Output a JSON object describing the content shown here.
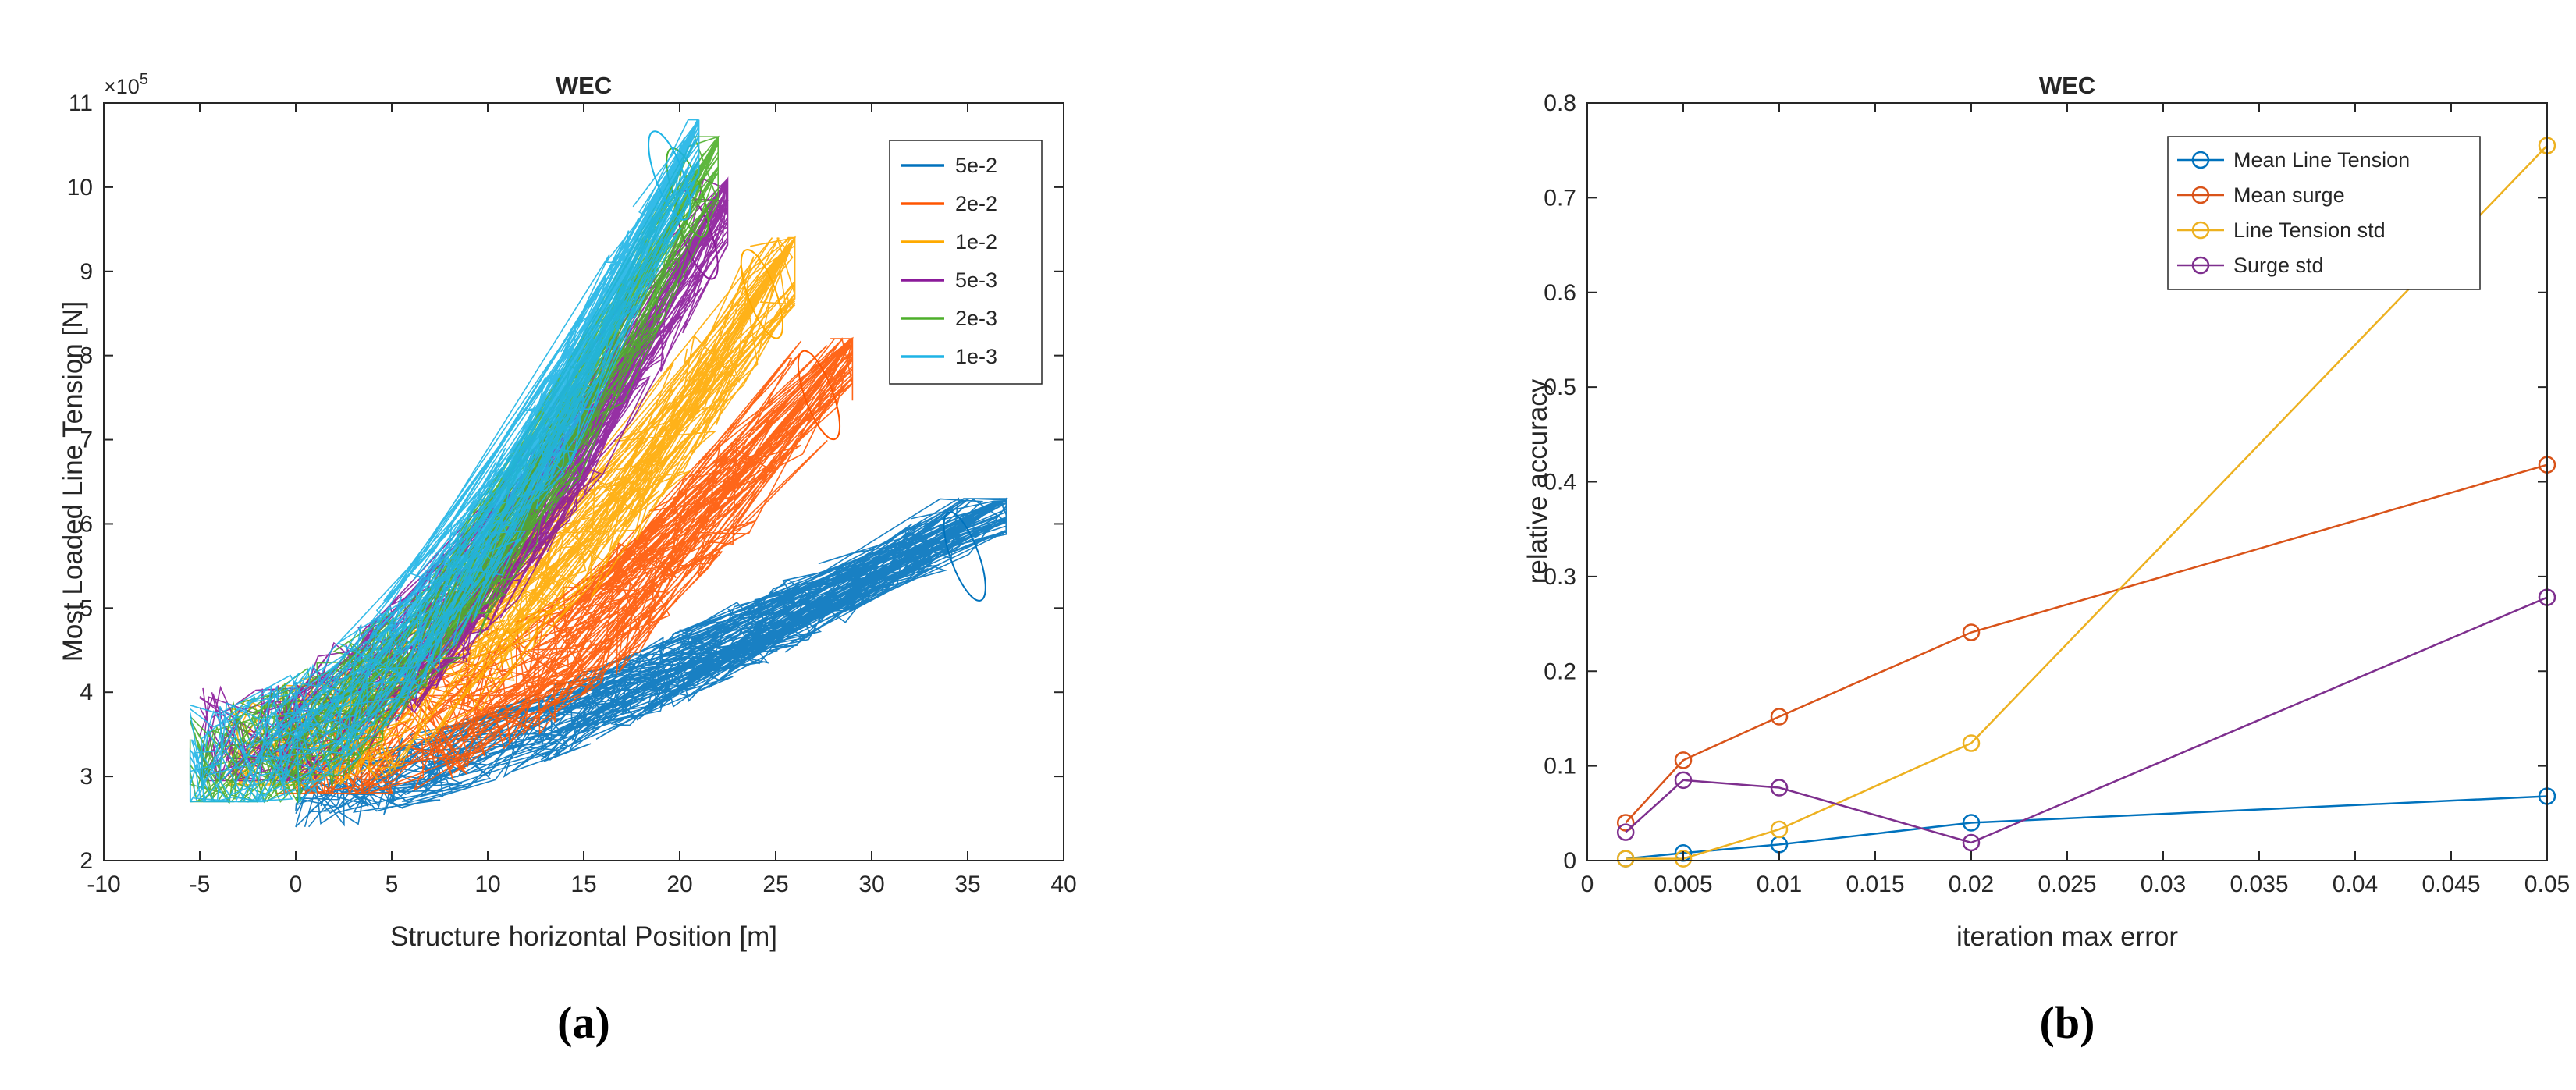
{
  "captions": [
    "(a)",
    "(b)"
  ],
  "chart_data": [
    {
      "type": "line",
      "title": "WEC",
      "xlabel": "Structure horizontal Position [m]",
      "ylabel": "Most Loaded Line Tension [N]",
      "y_exponent_label": "×10",
      "y_exponent_power": "5",
      "xlim": [
        -10,
        40
      ],
      "ylim": [
        2,
        11
      ],
      "xticks": [
        "-10",
        "-5",
        "0",
        "5",
        "10",
        "15",
        "20",
        "25",
        "30",
        "35",
        "40"
      ],
      "yticks": [
        "2",
        "3",
        "4",
        "5",
        "6",
        "7",
        "8",
        "9",
        "10",
        "11"
      ],
      "legend_position": "top-right",
      "series": [
        {
          "name": "5e-2",
          "color": "#0072BD",
          "x_range": [
            0,
            37
          ],
          "y_range": [
            2.4,
            6.3
          ]
        },
        {
          "name": "2e-2",
          "color": "#FF5500",
          "x_range": [
            -1,
            29
          ],
          "y_range": [
            2.8,
            8.2
          ]
        },
        {
          "name": "1e-2",
          "color": "#FFAA00",
          "x_range": [
            -3.5,
            26
          ],
          "y_range": [
            2.9,
            9.4
          ]
        },
        {
          "name": "5e-3",
          "color": "#8B1A9A",
          "x_range": [
            -5,
            22.5
          ],
          "y_range": [
            2.95,
            10.1
          ]
        },
        {
          "name": "2e-3",
          "color": "#4DAF2A",
          "x_range": [
            -5.5,
            22
          ],
          "y_range": [
            2.7,
            10.6
          ]
        },
        {
          "name": "1e-3",
          "color": "#1EB4E6",
          "x_range": [
            -5.5,
            21
          ],
          "y_range": [
            2.7,
            10.8
          ]
        }
      ]
    },
    {
      "type": "line",
      "title": "WEC",
      "xlabel": "iteration max error",
      "ylabel": "relative accuracy",
      "xlim": [
        0,
        0.05
      ],
      "ylim": [
        0,
        0.8
      ],
      "xticks": [
        "0",
        "0.005",
        "0.01",
        "0.015",
        "0.02",
        "0.025",
        "0.03",
        "0.035",
        "0.04",
        "0.045",
        "0.05"
      ],
      "yticks": [
        "0",
        "0.1",
        "0.2",
        "0.3",
        "0.4",
        "0.5",
        "0.6",
        "0.7",
        "0.8"
      ],
      "legend_position": "top-right",
      "x": [
        0.002,
        0.005,
        0.01,
        0.02,
        0.05
      ],
      "series": [
        {
          "name": "Mean Line Tension",
          "color": "#0072BD",
          "values": [
            0.002,
            0.008,
            0.017,
            0.04,
            0.068
          ]
        },
        {
          "name": "Mean surge",
          "color": "#D95319",
          "values": [
            0.04,
            0.106,
            0.152,
            0.241,
            0.418
          ]
        },
        {
          "name": "Line Tension std",
          "color": "#EDB120",
          "values": [
            0.002,
            0.002,
            0.033,
            0.124,
            0.755
          ]
        },
        {
          "name": "Surge std",
          "color": "#7E2F8E",
          "values": [
            0.03,
            0.085,
            0.077,
            0.019,
            0.278
          ]
        }
      ]
    }
  ]
}
